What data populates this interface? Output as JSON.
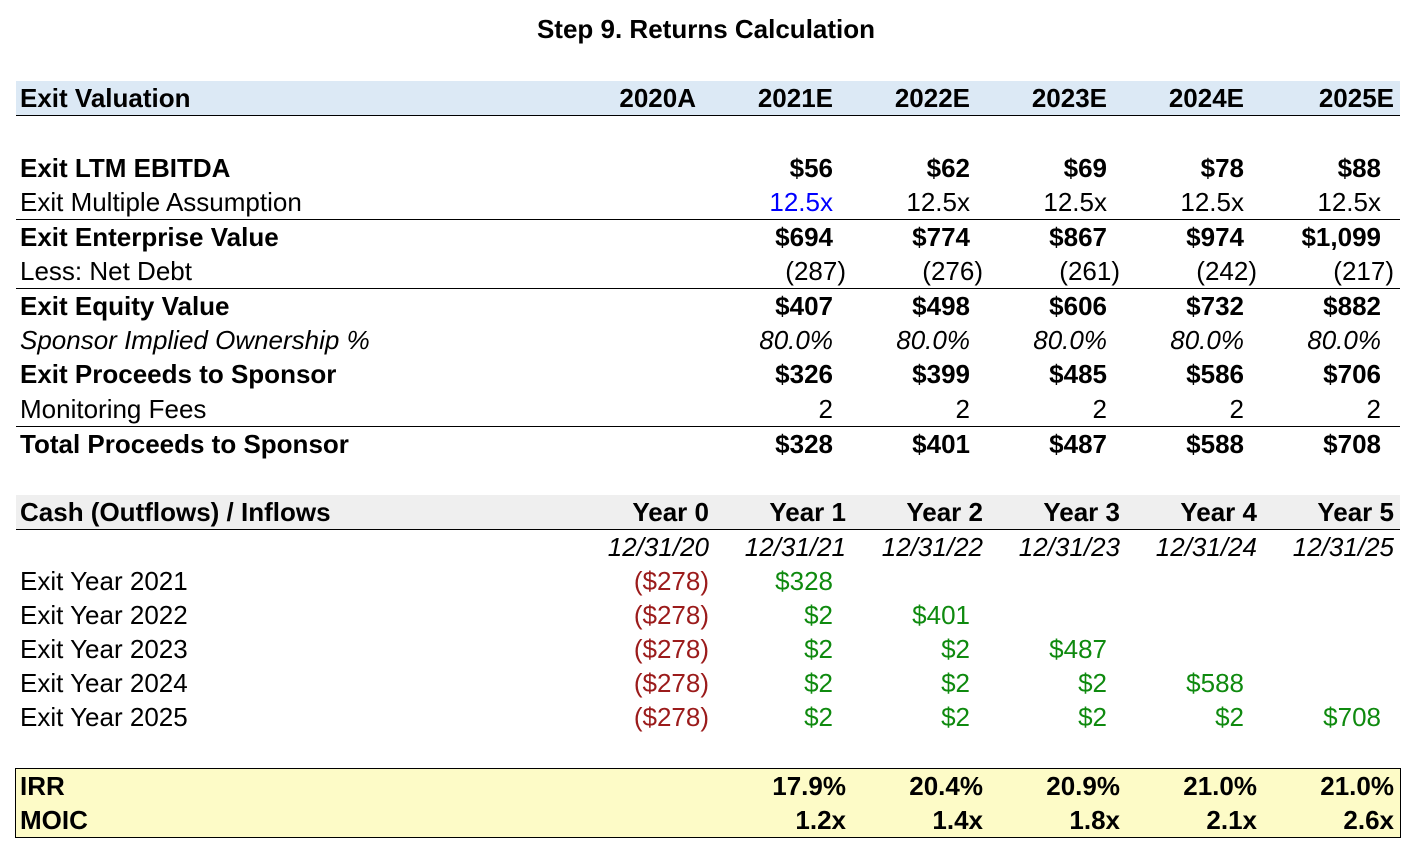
{
  "title": "Step 9. Returns Calculation",
  "exit_valuation": {
    "header": "Exit Valuation",
    "years": [
      "2020A",
      "2021E",
      "2022E",
      "2023E",
      "2024E",
      "2025E"
    ],
    "rows": [
      {
        "label": "Exit LTM EBITDA",
        "values": [
          "$56",
          "$62",
          "$69",
          "$78",
          "$88"
        ]
      },
      {
        "label": "Exit Multiple Assumption",
        "values": [
          "12.5x",
          "12.5x",
          "12.5x",
          "12.5x",
          "12.5x"
        ]
      },
      {
        "label": "Exit Enterprise Value",
        "values": [
          "$694",
          "$774",
          "$867",
          "$974",
          "$1,099"
        ]
      },
      {
        "label": "Less: Net Debt",
        "values": [
          "(287)",
          "(276)",
          "(261)",
          "(242)",
          "(217)"
        ]
      },
      {
        "label": "Exit Equity Value",
        "values": [
          "$407",
          "$498",
          "$606",
          "$732",
          "$882"
        ]
      },
      {
        "label": "Sponsor Implied Ownership %",
        "values": [
          "80.0%",
          "80.0%",
          "80.0%",
          "80.0%",
          "80.0%"
        ]
      },
      {
        "label": "Exit Proceeds to Sponsor",
        "values": [
          "$326",
          "$399",
          "$485",
          "$586",
          "$706"
        ]
      },
      {
        "label": "Monitoring Fees",
        "values": [
          "2",
          "2",
          "2",
          "2",
          "2"
        ]
      },
      {
        "label": "Total Proceeds to Sponsor",
        "values": [
          "$328",
          "$401",
          "$487",
          "$588",
          "$708"
        ]
      }
    ]
  },
  "cash_flows": {
    "header": "Cash (Outflows) / Inflows",
    "years": [
      "Year 0",
      "Year 1",
      "Year 2",
      "Year 3",
      "Year 4",
      "Year 5"
    ],
    "dates": [
      "12/31/20",
      "12/31/21",
      "12/31/22",
      "12/31/23",
      "12/31/24",
      "12/31/25"
    ],
    "rows": [
      {
        "label": "Exit Year 2021",
        "outflow": "($278)",
        "inflows": [
          "$328"
        ]
      },
      {
        "label": "Exit Year 2022",
        "outflow": "($278)",
        "inflows": [
          "$2",
          "$401"
        ]
      },
      {
        "label": "Exit Year 2023",
        "outflow": "($278)",
        "inflows": [
          "$2",
          "$2",
          "$487"
        ]
      },
      {
        "label": "Exit Year 2024",
        "outflow": "($278)",
        "inflows": [
          "$2",
          "$2",
          "$2",
          "$588"
        ]
      },
      {
        "label": "Exit Year 2025",
        "outflow": "($278)",
        "inflows": [
          "$2",
          "$2",
          "$2",
          "$2",
          "$708"
        ]
      }
    ]
  },
  "summary": {
    "irr_label": "IRR",
    "irr": [
      "17.9%",
      "20.4%",
      "20.9%",
      "21.0%",
      "21.0%"
    ],
    "moic_label": "MOIC",
    "moic": [
      "1.2x",
      "1.4x",
      "1.8x",
      "2.1x",
      "2.6x"
    ]
  },
  "colors": {
    "input_blue": "#0000ff",
    "outflow_red": "#9b1b1b",
    "inflow_green": "#0f8a0f",
    "header_blue_bg": "#dce9f5",
    "header_gray_bg": "#efefef",
    "summary_bg": "#fdfbc7"
  }
}
